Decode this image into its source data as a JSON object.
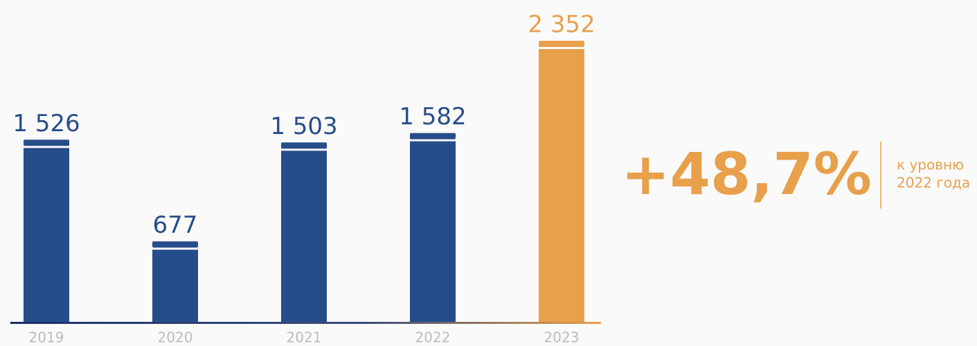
{
  "chart_data": {
    "type": "bar",
    "categories": [
      "2019",
      "2020",
      "2021",
      "2022",
      "2023"
    ],
    "values": [
      1526,
      677,
      1503,
      1582,
      2352
    ],
    "value_labels": [
      "1 526",
      "677",
      "1 503",
      "1 582",
      "2 352"
    ],
    "colors": [
      "#264d8a",
      "#264d8a",
      "#264d8a",
      "#264d8a",
      "#e8a04b"
    ],
    "annotation": "+48,7%",
    "annotation_note": [
      "к уровню",
      "2022 года"
    ]
  }
}
